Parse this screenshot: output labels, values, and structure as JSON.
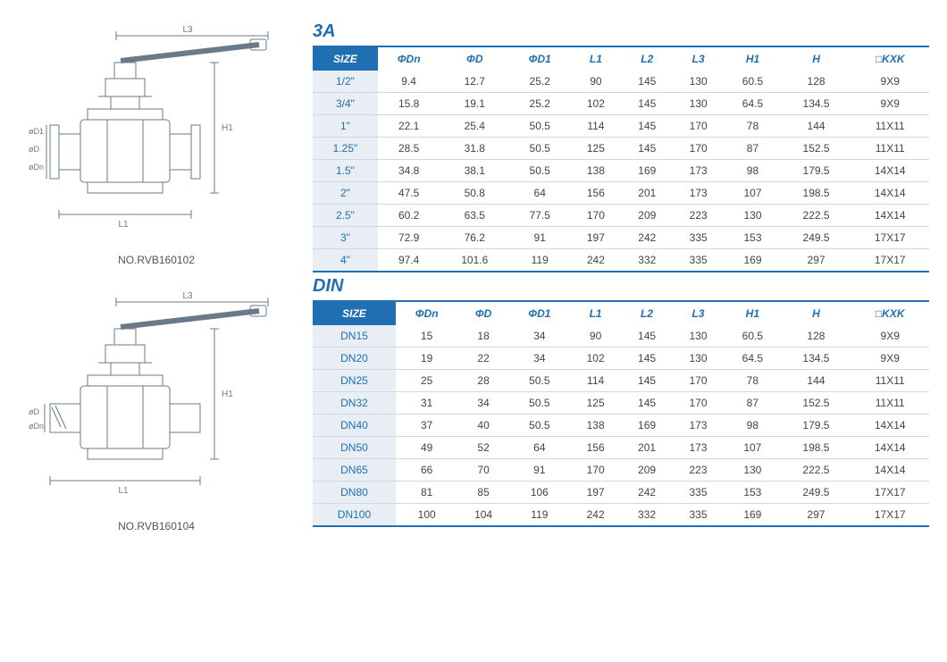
{
  "colors": {
    "brand_blue": "#1f6fb2",
    "header_bg": "#1f6fb2",
    "header_text": "#ffffff",
    "col_header_text": "#1f6fb2",
    "row_border": "#cfd8e0",
    "size_cell_bg": "#e8eef4",
    "body_text": "#444444",
    "diagram_stroke": "#6a7a8a",
    "label_text": "#555555"
  },
  "diagrams": [
    {
      "label": "NO.RVB160102",
      "dims": [
        "L3",
        "H1",
        "L1",
        "øD1",
        "øD",
        "øDn"
      ]
    },
    {
      "label": "NO.RVB160104",
      "dims": [
        "L3",
        "H1",
        "L1",
        "øD",
        "øDn"
      ]
    }
  ],
  "tables": [
    {
      "title": "3A",
      "columns": [
        "SIZE",
        "ΦDn",
        "ΦD",
        "ΦD1",
        "L1",
        "L2",
        "L3",
        "H1",
        "H",
        "□KXK"
      ],
      "rows": [
        [
          "1/2\"",
          "9.4",
          "12.7",
          "25.2",
          "90",
          "145",
          "130",
          "60.5",
          "128",
          "9X9"
        ],
        [
          "3/4\"",
          "15.8",
          "19.1",
          "25.2",
          "102",
          "145",
          "130",
          "64.5",
          "134.5",
          "9X9"
        ],
        [
          "1\"",
          "22.1",
          "25.4",
          "50.5",
          "114",
          "145",
          "170",
          "78",
          "144",
          "11X11"
        ],
        [
          "1.25\"",
          "28.5",
          "31.8",
          "50.5",
          "125",
          "145",
          "170",
          "87",
          "152.5",
          "11X11"
        ],
        [
          "1.5\"",
          "34.8",
          "38.1",
          "50.5",
          "138",
          "169",
          "173",
          "98",
          "179.5",
          "14X14"
        ],
        [
          "2\"",
          "47.5",
          "50.8",
          "64",
          "156",
          "201",
          "173",
          "107",
          "198.5",
          "14X14"
        ],
        [
          "2.5\"",
          "60.2",
          "63.5",
          "77.5",
          "170",
          "209",
          "223",
          "130",
          "222.5",
          "14X14"
        ],
        [
          "3\"",
          "72.9",
          "76.2",
          "91",
          "197",
          "242",
          "335",
          "153",
          "249.5",
          "17X17"
        ],
        [
          "4\"",
          "97.4",
          "101.6",
          "119",
          "242",
          "332",
          "335",
          "169",
          "297",
          "17X17"
        ]
      ]
    },
    {
      "title": "DIN",
      "columns": [
        "SIZE",
        "ΦDn",
        "ΦD",
        "ΦD1",
        "L1",
        "L2",
        "L3",
        "H1",
        "H",
        "□KXK"
      ],
      "rows": [
        [
          "DN15",
          "15",
          "18",
          "34",
          "90",
          "145",
          "130",
          "60.5",
          "128",
          "9X9"
        ],
        [
          "DN20",
          "19",
          "22",
          "34",
          "102",
          "145",
          "130",
          "64.5",
          "134.5",
          "9X9"
        ],
        [
          "DN25",
          "25",
          "28",
          "50.5",
          "114",
          "145",
          "170",
          "78",
          "144",
          "11X11"
        ],
        [
          "DN32",
          "31",
          "34",
          "50.5",
          "125",
          "145",
          "170",
          "87",
          "152.5",
          "11X11"
        ],
        [
          "DN40",
          "37",
          "40",
          "50.5",
          "138",
          "169",
          "173",
          "98",
          "179.5",
          "14X14"
        ],
        [
          "DN50",
          "49",
          "52",
          "64",
          "156",
          "201",
          "173",
          "107",
          "198.5",
          "14X14"
        ],
        [
          "DN65",
          "66",
          "70",
          "91",
          "170",
          "209",
          "223",
          "130",
          "222.5",
          "14X14"
        ],
        [
          "DN80",
          "81",
          "85",
          "106",
          "197",
          "242",
          "335",
          "153",
          "249.5",
          "17X17"
        ],
        [
          "DN100",
          "100",
          "104",
          "119",
          "242",
          "332",
          "335",
          "169",
          "297",
          "17X17"
        ]
      ]
    }
  ]
}
